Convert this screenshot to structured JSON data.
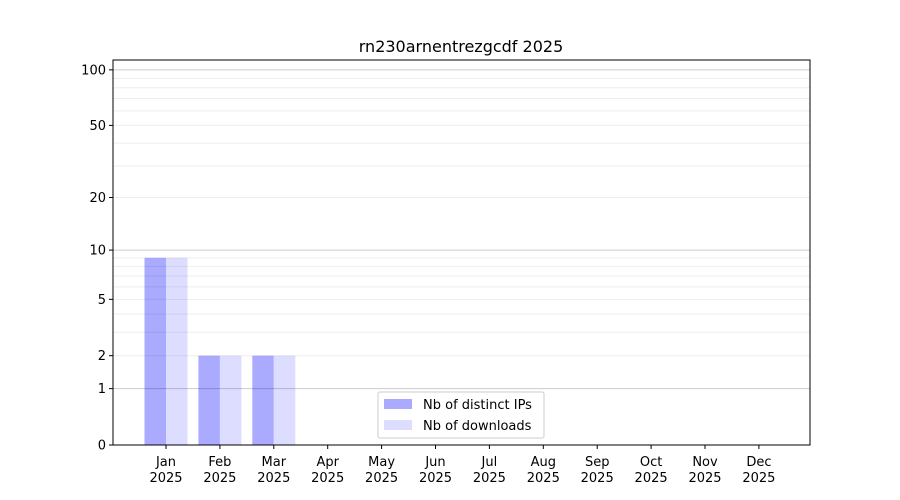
{
  "chart_data": {
    "type": "bar",
    "title": "rn230arnentrezgcdf 2025",
    "xlabel": "",
    "ylabel": "",
    "yscale": "log(1+y)",
    "ylim": [
      0,
      113
    ],
    "yticks": [
      0,
      1,
      2,
      5,
      10,
      20,
      50,
      100
    ],
    "ytick_labels": [
      "0",
      "1",
      "2",
      "5",
      "10",
      "20",
      "50",
      "100"
    ],
    "grid": true,
    "legend_position": "bottom-center",
    "categories": [
      "Jan\n2025",
      "Feb\n2025",
      "Mar\n2025",
      "Apr\n2025",
      "May\n2025",
      "Jun\n2025",
      "Jul\n2025",
      "Aug\n2025",
      "Sep\n2025",
      "Oct\n2025",
      "Nov\n2025",
      "Dec\n2025"
    ],
    "category_lines": [
      [
        "Jan",
        "2025"
      ],
      [
        "Feb",
        "2025"
      ],
      [
        "Mar",
        "2025"
      ],
      [
        "Apr",
        "2025"
      ],
      [
        "May",
        "2025"
      ],
      [
        "Jun",
        "2025"
      ],
      [
        "Jul",
        "2025"
      ],
      [
        "Aug",
        "2025"
      ],
      [
        "Sep",
        "2025"
      ],
      [
        "Oct",
        "2025"
      ],
      [
        "Nov",
        "2025"
      ],
      [
        "Dec",
        "2025"
      ]
    ],
    "series": [
      {
        "name": "Nb of distinct IPs",
        "color": "#aaaaff",
        "values": [
          9,
          2,
          2,
          0,
          0,
          0,
          0,
          0,
          0,
          0,
          0,
          0
        ]
      },
      {
        "name": "Nb of downloads",
        "color": "#ddddff",
        "values": [
          9,
          2,
          2,
          0,
          0,
          0,
          0,
          0,
          0,
          0,
          0,
          0
        ]
      }
    ]
  }
}
